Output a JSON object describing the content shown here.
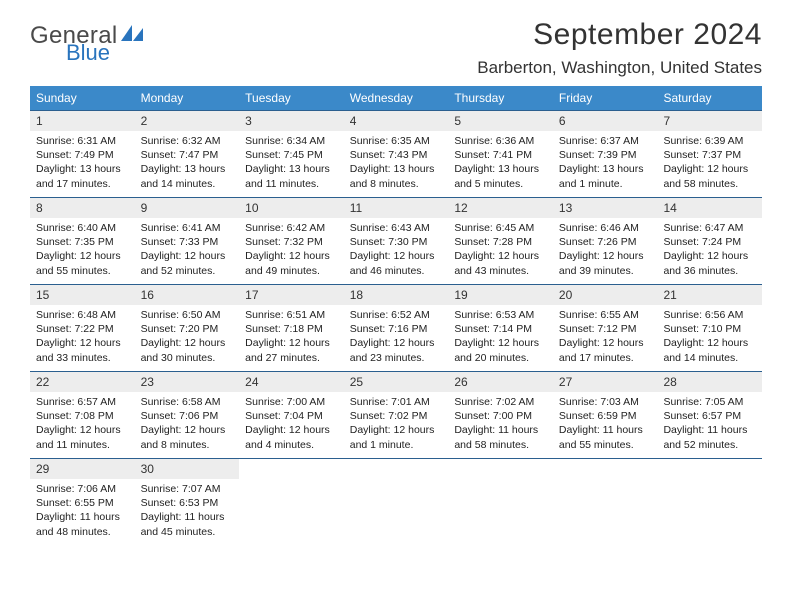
{
  "colors": {
    "header_bar": "#3b89c9",
    "header_text": "#ffffff",
    "daynum_bg": "#ededed",
    "week_border": "#2b5f8f",
    "logo_text": "#4a4a4a",
    "logo_blue": "#2974bd",
    "body_text": "#222222",
    "page_bg": "#ffffff"
  },
  "typography": {
    "title_fontsize": 30,
    "location_fontsize": 17,
    "weekday_fontsize": 12,
    "daynum_fontsize": 12,
    "body_fontsize": 10.5
  },
  "logo": {
    "word1": "General",
    "word2": "Blue"
  },
  "title": "September 2024",
  "location": "Barberton, Washington, United States",
  "weekdays": [
    "Sunday",
    "Monday",
    "Tuesday",
    "Wednesday",
    "Thursday",
    "Friday",
    "Saturday"
  ],
  "weeks": [
    [
      {
        "n": "1",
        "sunrise": "Sunrise: 6:31 AM",
        "sunset": "Sunset: 7:49 PM",
        "daylight": "Daylight: 13 hours and 17 minutes."
      },
      {
        "n": "2",
        "sunrise": "Sunrise: 6:32 AM",
        "sunset": "Sunset: 7:47 PM",
        "daylight": "Daylight: 13 hours and 14 minutes."
      },
      {
        "n": "3",
        "sunrise": "Sunrise: 6:34 AM",
        "sunset": "Sunset: 7:45 PM",
        "daylight": "Daylight: 13 hours and 11 minutes."
      },
      {
        "n": "4",
        "sunrise": "Sunrise: 6:35 AM",
        "sunset": "Sunset: 7:43 PM",
        "daylight": "Daylight: 13 hours and 8 minutes."
      },
      {
        "n": "5",
        "sunrise": "Sunrise: 6:36 AM",
        "sunset": "Sunset: 7:41 PM",
        "daylight": "Daylight: 13 hours and 5 minutes."
      },
      {
        "n": "6",
        "sunrise": "Sunrise: 6:37 AM",
        "sunset": "Sunset: 7:39 PM",
        "daylight": "Daylight: 13 hours and 1 minute."
      },
      {
        "n": "7",
        "sunrise": "Sunrise: 6:39 AM",
        "sunset": "Sunset: 7:37 PM",
        "daylight": "Daylight: 12 hours and 58 minutes."
      }
    ],
    [
      {
        "n": "8",
        "sunrise": "Sunrise: 6:40 AM",
        "sunset": "Sunset: 7:35 PM",
        "daylight": "Daylight: 12 hours and 55 minutes."
      },
      {
        "n": "9",
        "sunrise": "Sunrise: 6:41 AM",
        "sunset": "Sunset: 7:33 PM",
        "daylight": "Daylight: 12 hours and 52 minutes."
      },
      {
        "n": "10",
        "sunrise": "Sunrise: 6:42 AM",
        "sunset": "Sunset: 7:32 PM",
        "daylight": "Daylight: 12 hours and 49 minutes."
      },
      {
        "n": "11",
        "sunrise": "Sunrise: 6:43 AM",
        "sunset": "Sunset: 7:30 PM",
        "daylight": "Daylight: 12 hours and 46 minutes."
      },
      {
        "n": "12",
        "sunrise": "Sunrise: 6:45 AM",
        "sunset": "Sunset: 7:28 PM",
        "daylight": "Daylight: 12 hours and 43 minutes."
      },
      {
        "n": "13",
        "sunrise": "Sunrise: 6:46 AM",
        "sunset": "Sunset: 7:26 PM",
        "daylight": "Daylight: 12 hours and 39 minutes."
      },
      {
        "n": "14",
        "sunrise": "Sunrise: 6:47 AM",
        "sunset": "Sunset: 7:24 PM",
        "daylight": "Daylight: 12 hours and 36 minutes."
      }
    ],
    [
      {
        "n": "15",
        "sunrise": "Sunrise: 6:48 AM",
        "sunset": "Sunset: 7:22 PM",
        "daylight": "Daylight: 12 hours and 33 minutes."
      },
      {
        "n": "16",
        "sunrise": "Sunrise: 6:50 AM",
        "sunset": "Sunset: 7:20 PM",
        "daylight": "Daylight: 12 hours and 30 minutes."
      },
      {
        "n": "17",
        "sunrise": "Sunrise: 6:51 AM",
        "sunset": "Sunset: 7:18 PM",
        "daylight": "Daylight: 12 hours and 27 minutes."
      },
      {
        "n": "18",
        "sunrise": "Sunrise: 6:52 AM",
        "sunset": "Sunset: 7:16 PM",
        "daylight": "Daylight: 12 hours and 23 minutes."
      },
      {
        "n": "19",
        "sunrise": "Sunrise: 6:53 AM",
        "sunset": "Sunset: 7:14 PM",
        "daylight": "Daylight: 12 hours and 20 minutes."
      },
      {
        "n": "20",
        "sunrise": "Sunrise: 6:55 AM",
        "sunset": "Sunset: 7:12 PM",
        "daylight": "Daylight: 12 hours and 17 minutes."
      },
      {
        "n": "21",
        "sunrise": "Sunrise: 6:56 AM",
        "sunset": "Sunset: 7:10 PM",
        "daylight": "Daylight: 12 hours and 14 minutes."
      }
    ],
    [
      {
        "n": "22",
        "sunrise": "Sunrise: 6:57 AM",
        "sunset": "Sunset: 7:08 PM",
        "daylight": "Daylight: 12 hours and 11 minutes."
      },
      {
        "n": "23",
        "sunrise": "Sunrise: 6:58 AM",
        "sunset": "Sunset: 7:06 PM",
        "daylight": "Daylight: 12 hours and 8 minutes."
      },
      {
        "n": "24",
        "sunrise": "Sunrise: 7:00 AM",
        "sunset": "Sunset: 7:04 PM",
        "daylight": "Daylight: 12 hours and 4 minutes."
      },
      {
        "n": "25",
        "sunrise": "Sunrise: 7:01 AM",
        "sunset": "Sunset: 7:02 PM",
        "daylight": "Daylight: 12 hours and 1 minute."
      },
      {
        "n": "26",
        "sunrise": "Sunrise: 7:02 AM",
        "sunset": "Sunset: 7:00 PM",
        "daylight": "Daylight: 11 hours and 58 minutes."
      },
      {
        "n": "27",
        "sunrise": "Sunrise: 7:03 AM",
        "sunset": "Sunset: 6:59 PM",
        "daylight": "Daylight: 11 hours and 55 minutes."
      },
      {
        "n": "28",
        "sunrise": "Sunrise: 7:05 AM",
        "sunset": "Sunset: 6:57 PM",
        "daylight": "Daylight: 11 hours and 52 minutes."
      }
    ],
    [
      {
        "n": "29",
        "sunrise": "Sunrise: 7:06 AM",
        "sunset": "Sunset: 6:55 PM",
        "daylight": "Daylight: 11 hours and 48 minutes."
      },
      {
        "n": "30",
        "sunrise": "Sunrise: 7:07 AM",
        "sunset": "Sunset: 6:53 PM",
        "daylight": "Daylight: 11 hours and 45 minutes."
      },
      null,
      null,
      null,
      null,
      null
    ]
  ]
}
